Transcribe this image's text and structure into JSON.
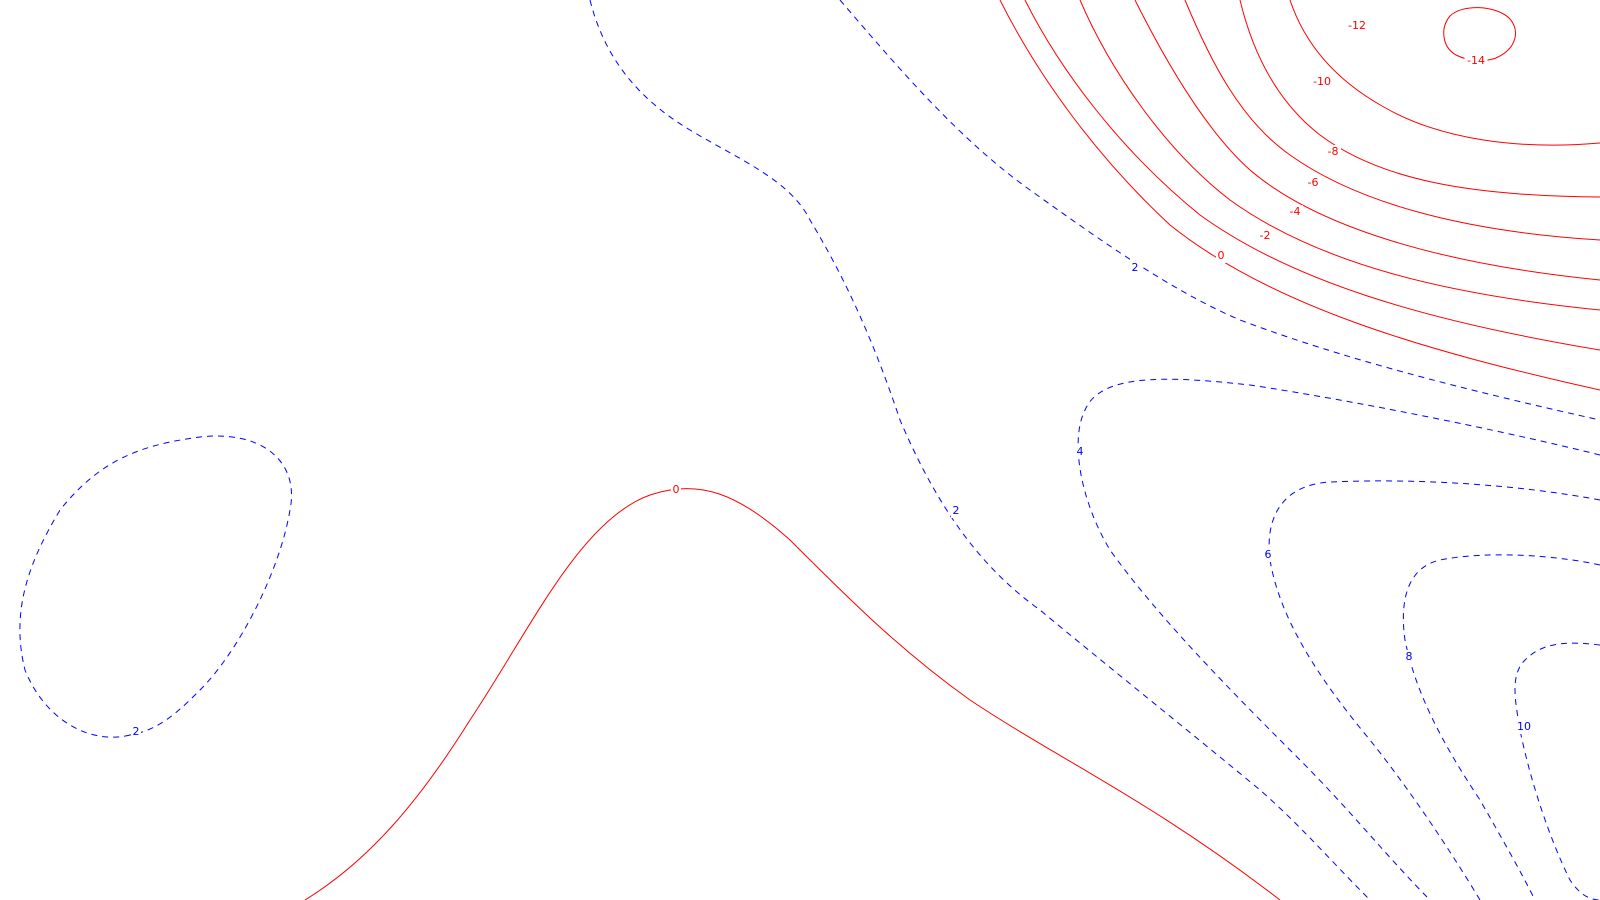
{
  "chart_data": {
    "type": "contour",
    "title": "",
    "xlabel": "",
    "ylabel": "",
    "grid": false,
    "legend": "none",
    "colors": {
      "negative_or_zero": "#ff0000",
      "positive": "#0000ff"
    },
    "line_styles": {
      "negative_or_zero": "solid",
      "positive": "dashed"
    },
    "contour_levels": [
      -14,
      -12,
      -10,
      -8,
      -6,
      -4,
      -2,
      0,
      2,
      4,
      6,
      8,
      10
    ],
    "labels": [
      {
        "id": "lvl-neg14",
        "text": "-14",
        "value": -14,
        "sign": "neg"
      },
      {
        "id": "lvl-neg12",
        "text": "-12",
        "value": -12,
        "sign": "neg"
      },
      {
        "id": "lvl-neg10",
        "text": "-10",
        "value": -10,
        "sign": "neg"
      },
      {
        "id": "lvl-neg8",
        "text": "-8",
        "value": -8,
        "sign": "neg"
      },
      {
        "id": "lvl-neg6",
        "text": "-6",
        "value": -6,
        "sign": "neg"
      },
      {
        "id": "lvl-neg4",
        "text": "-4",
        "value": -4,
        "sign": "neg"
      },
      {
        "id": "lvl-neg2",
        "text": "-2",
        "value": -2,
        "sign": "neg"
      },
      {
        "id": "lvl-zero-upper",
        "text": "0",
        "value": 0,
        "sign": "neg"
      },
      {
        "id": "lvl-zero-lower",
        "text": "0",
        "value": 0,
        "sign": "neg"
      },
      {
        "id": "lvl-pos2-upper",
        "text": "2",
        "value": 2,
        "sign": "pos"
      },
      {
        "id": "lvl-pos2-middle",
        "text": "2",
        "value": 2,
        "sign": "pos"
      },
      {
        "id": "lvl-pos2-left",
        "text": "2",
        "value": 2,
        "sign": "pos"
      },
      {
        "id": "lvl-pos4",
        "text": "4",
        "value": 4,
        "sign": "pos"
      },
      {
        "id": "lvl-pos6",
        "text": "6",
        "value": 6,
        "sign": "pos"
      },
      {
        "id": "lvl-pos8",
        "text": "8",
        "value": 8,
        "sign": "pos"
      },
      {
        "id": "lvl-pos10",
        "text": "10",
        "value": 10,
        "sign": "pos"
      }
    ]
  }
}
